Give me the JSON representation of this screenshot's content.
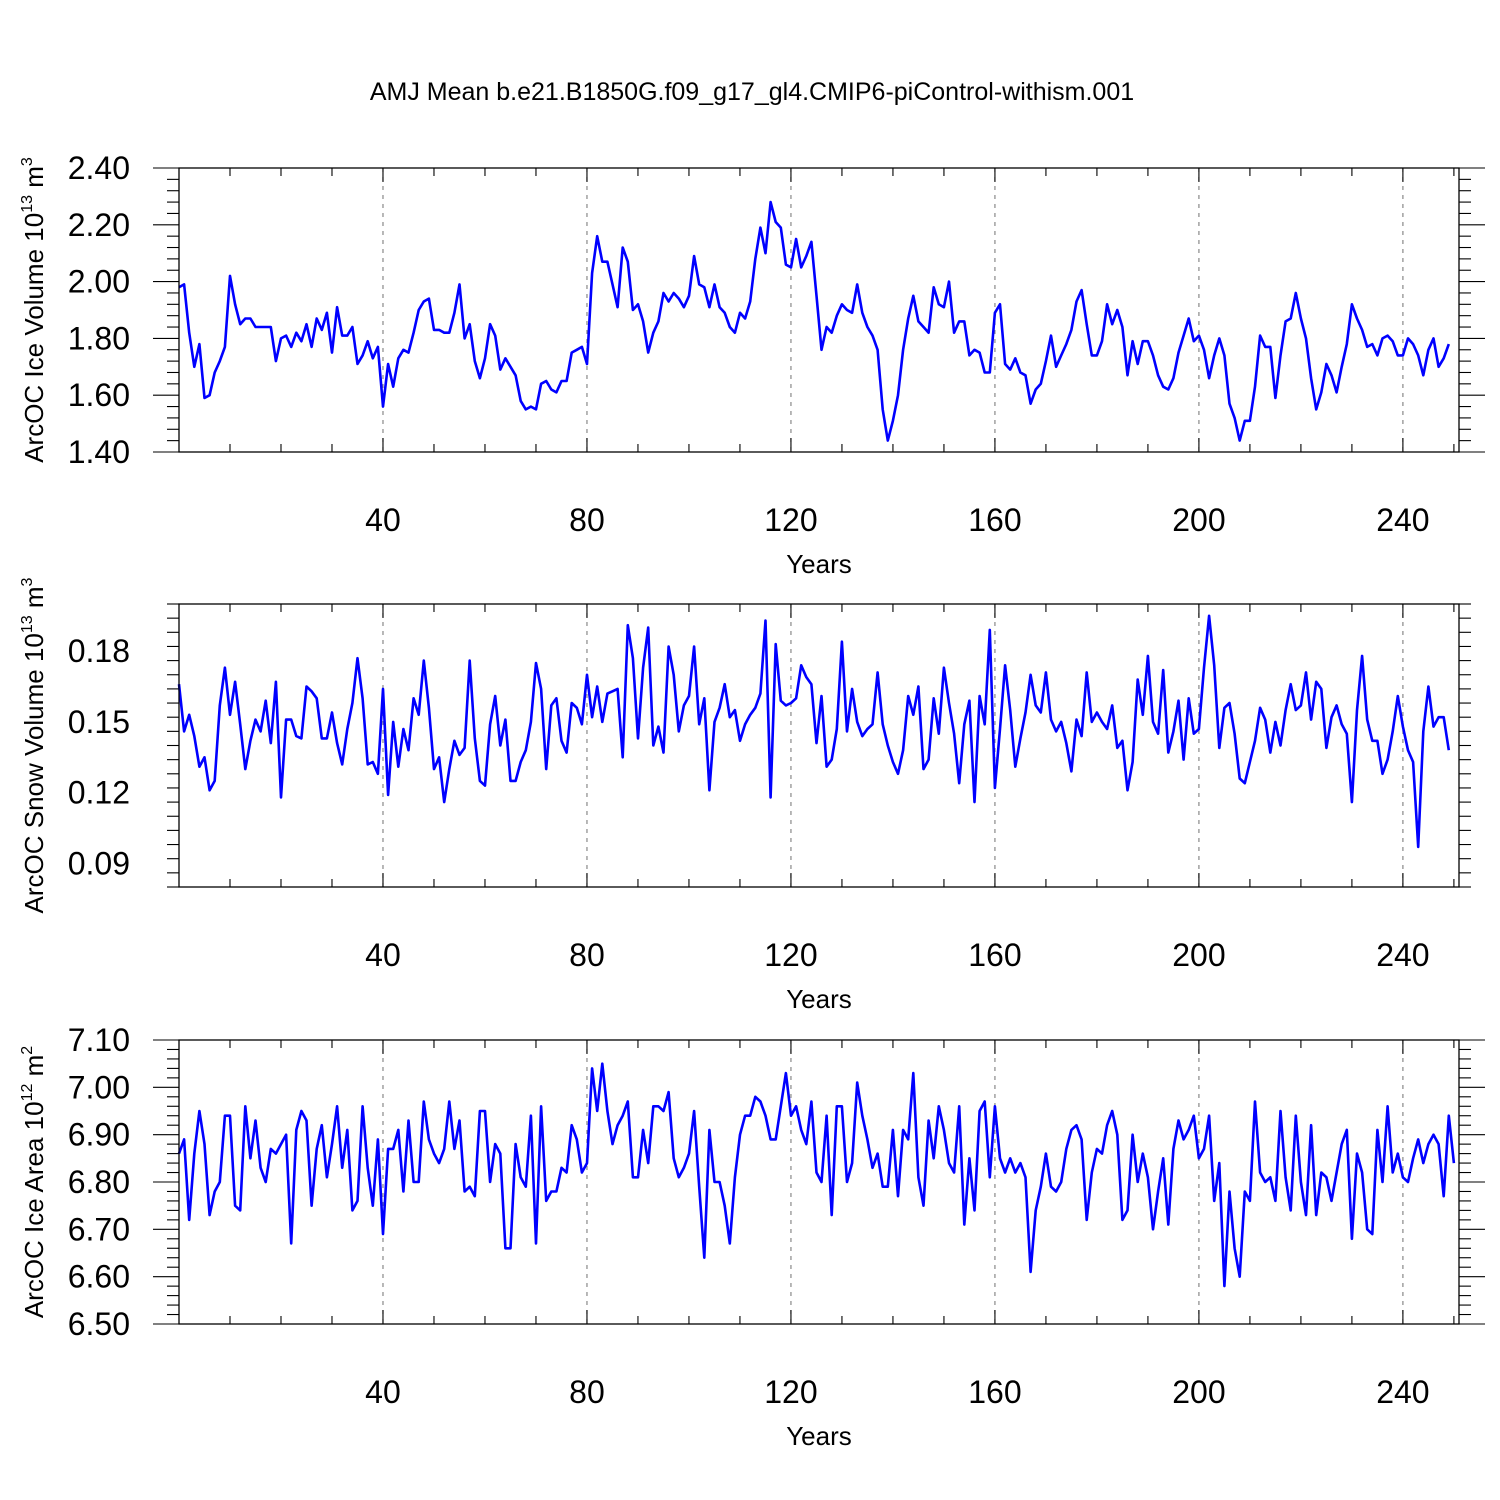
{
  "figure": {
    "title": "AMJ Mean b.e21.B1850G.f09_g17_gl4.CMIP6-piControl-withism.001"
  },
  "chart_data": [
    {
      "type": "line",
      "ylabel": "ArcOC Ice Volume 10",
      "ylabel_exp": "13",
      "ylabel_unit": " m",
      "ylabel_unit_exp": "3",
      "xlabel": "Years",
      "xlim": [
        0,
        251
      ],
      "ylim": [
        1.4,
        2.4
      ],
      "xticks": [
        40,
        80,
        120,
        160,
        200,
        240
      ],
      "xtick_labels": [
        "40",
        "80",
        "120",
        "160",
        "200",
        "240"
      ],
      "yticks": [
        1.4,
        1.6,
        1.8,
        2.0,
        2.2,
        2.4
      ],
      "ytick_labels": [
        "1.40",
        "1.60",
        "1.80",
        "2.00",
        "2.20",
        "2.40"
      ],
      "grid": "vertical dashed at x ticks",
      "series_color": "#0000ff",
      "x_start": 0,
      "x_step": 1,
      "values": [
        1.98,
        1.99,
        1.82,
        1.7,
        1.78,
        1.59,
        1.6,
        1.68,
        1.72,
        1.77,
        2.02,
        1.92,
        1.85,
        1.87,
        1.87,
        1.84,
        1.84,
        1.84,
        1.84,
        1.72,
        1.8,
        1.81,
        1.77,
        1.82,
        1.79,
        1.85,
        1.77,
        1.87,
        1.83,
        1.89,
        1.75,
        1.91,
        1.81,
        1.81,
        1.84,
        1.71,
        1.74,
        1.79,
        1.73,
        1.77,
        1.56,
        1.71,
        1.63,
        1.73,
        1.76,
        1.75,
        1.82,
        1.9,
        1.93,
        1.94,
        1.83,
        1.83,
        1.82,
        1.82,
        1.89,
        1.99,
        1.8,
        1.85,
        1.72,
        1.66,
        1.73,
        1.85,
        1.81,
        1.69,
        1.73,
        1.7,
        1.67,
        1.58,
        1.55,
        1.56,
        1.55,
        1.64,
        1.65,
        1.62,
        1.61,
        1.65,
        1.65,
        1.75,
        1.76,
        1.77,
        1.71,
        2.03,
        2.16,
        2.07,
        2.07,
        1.99,
        1.91,
        2.12,
        2.07,
        1.9,
        1.92,
        1.86,
        1.75,
        1.82,
        1.86,
        1.96,
        1.93,
        1.96,
        1.94,
        1.91,
        1.95,
        2.09,
        1.99,
        1.98,
        1.91,
        1.99,
        1.91,
        1.89,
        1.84,
        1.82,
        1.89,
        1.87,
        1.93,
        2.08,
        2.19,
        2.1,
        2.28,
        2.21,
        2.19,
        2.06,
        2.05,
        2.15,
        2.05,
        2.09,
        2.14,
        1.95,
        1.76,
        1.84,
        1.82,
        1.88,
        1.92,
        1.9,
        1.89,
        1.99,
        1.89,
        1.84,
        1.81,
        1.76,
        1.55,
        1.44,
        1.51,
        1.6,
        1.76,
        1.87,
        1.95,
        1.86,
        1.84,
        1.82,
        1.98,
        1.92,
        1.91,
        2.0,
        1.82,
        1.86,
        1.86,
        1.74,
        1.76,
        1.75,
        1.68,
        1.68,
        1.89,
        1.92,
        1.71,
        1.69,
        1.73,
        1.68,
        1.67,
        1.57,
        1.62,
        1.64,
        1.72,
        1.81,
        1.7,
        1.74,
        1.78,
        1.83,
        1.93,
        1.97,
        1.85,
        1.74,
        1.74,
        1.79,
        1.92,
        1.85,
        1.9,
        1.84,
        1.67,
        1.79,
        1.71,
        1.79,
        1.79,
        1.74,
        1.67,
        1.63,
        1.62,
        1.66,
        1.75,
        1.81,
        1.87,
        1.79,
        1.81,
        1.76,
        1.66,
        1.74,
        1.8,
        1.74,
        1.57,
        1.52,
        1.44,
        1.51,
        1.51,
        1.63,
        1.81,
        1.77,
        1.77,
        1.59,
        1.74,
        1.86,
        1.87,
        1.96,
        1.87,
        1.8,
        1.66,
        1.55,
        1.61,
        1.71,
        1.67,
        1.61,
        1.7,
        1.78,
        1.92,
        1.87,
        1.83,
        1.77,
        1.78,
        1.74,
        1.8,
        1.81,
        1.79,
        1.74,
        1.74,
        1.8,
        1.78,
        1.74,
        1.67,
        1.76,
        1.8,
        1.7,
        1.73,
        1.78
      ]
    },
    {
      "type": "line",
      "ylabel": "ArcOC Snow Volume 10",
      "ylabel_exp": "13",
      "ylabel_unit": " m",
      "ylabel_unit_exp": "3",
      "xlabel": "Years",
      "xlim": [
        0,
        251
      ],
      "ylim": [
        0.08,
        0.2
      ],
      "xticks": [
        40,
        80,
        120,
        160,
        200,
        240
      ],
      "xtick_labels": [
        "40",
        "80",
        "120",
        "160",
        "200",
        "240"
      ],
      "yticks": [
        0.09,
        0.12,
        0.15,
        0.18
      ],
      "ytick_labels": [
        "0.09",
        "0.12",
        "0.15",
        "0.18"
      ],
      "grid": "vertical dashed at x ticks",
      "series_color": "#0000ff",
      "x_start": 0,
      "x_step": 1,
      "values": [
        0.166,
        0.146,
        0.153,
        0.144,
        0.131,
        0.135,
        0.121,
        0.125,
        0.157,
        0.173,
        0.153,
        0.167,
        0.149,
        0.13,
        0.142,
        0.151,
        0.146,
        0.159,
        0.141,
        0.167,
        0.118,
        0.151,
        0.151,
        0.144,
        0.143,
        0.165,
        0.163,
        0.16,
        0.143,
        0.143,
        0.154,
        0.141,
        0.132,
        0.147,
        0.158,
        0.177,
        0.16,
        0.132,
        0.133,
        0.128,
        0.164,
        0.119,
        0.15,
        0.131,
        0.147,
        0.138,
        0.16,
        0.153,
        0.176,
        0.156,
        0.13,
        0.135,
        0.116,
        0.13,
        0.142,
        0.136,
        0.139,
        0.176,
        0.143,
        0.125,
        0.123,
        0.149,
        0.161,
        0.14,
        0.151,
        0.125,
        0.125,
        0.133,
        0.138,
        0.15,
        0.175,
        0.164,
        0.13,
        0.157,
        0.16,
        0.142,
        0.137,
        0.158,
        0.156,
        0.149,
        0.17,
        0.152,
        0.165,
        0.15,
        0.162,
        0.163,
        0.164,
        0.135,
        0.191,
        0.177,
        0.143,
        0.173,
        0.19,
        0.14,
        0.148,
        0.137,
        0.182,
        0.17,
        0.146,
        0.157,
        0.161,
        0.182,
        0.149,
        0.16,
        0.121,
        0.15,
        0.156,
        0.166,
        0.152,
        0.155,
        0.142,
        0.149,
        0.153,
        0.156,
        0.162,
        0.193,
        0.118,
        0.183,
        0.159,
        0.157,
        0.158,
        0.16,
        0.174,
        0.169,
        0.166,
        0.141,
        0.161,
        0.131,
        0.134,
        0.147,
        0.184,
        0.146,
        0.164,
        0.15,
        0.144,
        0.147,
        0.149,
        0.171,
        0.149,
        0.14,
        0.133,
        0.128,
        0.138,
        0.161,
        0.153,
        0.165,
        0.13,
        0.134,
        0.16,
        0.145,
        0.173,
        0.158,
        0.145,
        0.124,
        0.149,
        0.159,
        0.116,
        0.161,
        0.149,
        0.189,
        0.122,
        0.147,
        0.174,
        0.155,
        0.131,
        0.143,
        0.154,
        0.17,
        0.157,
        0.154,
        0.171,
        0.151,
        0.146,
        0.15,
        0.141,
        0.129,
        0.151,
        0.144,
        0.171,
        0.15,
        0.154,
        0.15,
        0.147,
        0.157,
        0.139,
        0.142,
        0.121,
        0.133,
        0.168,
        0.153,
        0.178,
        0.15,
        0.145,
        0.172,
        0.137,
        0.146,
        0.159,
        0.134,
        0.16,
        0.145,
        0.147,
        0.173,
        0.195,
        0.174,
        0.139,
        0.156,
        0.158,
        0.145,
        0.126,
        0.124,
        0.133,
        0.142,
        0.156,
        0.151,
        0.137,
        0.15,
        0.14,
        0.155,
        0.166,
        0.155,
        0.157,
        0.171,
        0.151,
        0.167,
        0.164,
        0.139,
        0.152,
        0.157,
        0.149,
        0.145,
        0.116,
        0.155,
        0.178,
        0.151,
        0.142,
        0.142,
        0.128,
        0.134,
        0.146,
        0.161,
        0.148,
        0.138,
        0.133,
        0.097,
        0.146,
        0.165,
        0.148,
        0.152,
        0.152,
        0.138
      ]
    },
    {
      "type": "line",
      "ylabel": "ArcOC Ice Area 10",
      "ylabel_exp": "12",
      "ylabel_unit": " m",
      "ylabel_unit_exp": "2",
      "xlabel": "Years",
      "xlim": [
        0,
        251
      ],
      "ylim": [
        6.5,
        7.1
      ],
      "xticks": [
        40,
        80,
        120,
        160,
        200,
        240
      ],
      "xtick_labels": [
        "40",
        "80",
        "120",
        "160",
        "200",
        "240"
      ],
      "yticks": [
        6.5,
        6.6,
        6.7,
        6.8,
        6.9,
        7.0,
        7.1
      ],
      "ytick_labels": [
        "6.50",
        "6.60",
        "6.70",
        "6.80",
        "6.90",
        "7.00",
        "7.10"
      ],
      "grid": "vertical dashed at x ticks",
      "series_color": "#0000ff",
      "x_start": 0,
      "x_step": 1,
      "values": [
        6.86,
        6.89,
        6.72,
        6.86,
        6.95,
        6.88,
        6.73,
        6.78,
        6.8,
        6.94,
        6.94,
        6.75,
        6.74,
        6.96,
        6.85,
        6.93,
        6.83,
        6.8,
        6.87,
        6.86,
        6.88,
        6.9,
        6.67,
        6.91,
        6.95,
        6.93,
        6.75,
        6.87,
        6.92,
        6.81,
        6.88,
        6.96,
        6.83,
        6.91,
        6.74,
        6.76,
        6.96,
        6.83,
        6.75,
        6.89,
        6.69,
        6.87,
        6.87,
        6.91,
        6.78,
        6.93,
        6.8,
        6.8,
        6.97,
        6.89,
        6.86,
        6.84,
        6.87,
        6.97,
        6.87,
        6.93,
        6.78,
        6.79,
        6.77,
        6.95,
        6.95,
        6.8,
        6.88,
        6.86,
        6.66,
        6.66,
        6.88,
        6.81,
        6.79,
        6.94,
        6.67,
        6.96,
        6.76,
        6.78,
        6.78,
        6.83,
        6.82,
        6.92,
        6.89,
        6.82,
        6.84,
        7.04,
        6.95,
        7.05,
        6.95,
        6.88,
        6.92,
        6.94,
        6.97,
        6.81,
        6.81,
        6.91,
        6.84,
        6.96,
        6.96,
        6.95,
        6.99,
        6.85,
        6.81,
        6.83,
        6.86,
        6.95,
        6.79,
        6.64,
        6.91,
        6.8,
        6.8,
        6.75,
        6.67,
        6.81,
        6.9,
        6.94,
        6.94,
        6.98,
        6.97,
        6.94,
        6.89,
        6.89,
        6.96,
        7.03,
        6.94,
        6.96,
        6.91,
        6.88,
        6.97,
        6.82,
        6.8,
        6.94,
        6.73,
        6.96,
        6.96,
        6.8,
        6.84,
        7.01,
        6.94,
        6.89,
        6.83,
        6.86,
        6.79,
        6.79,
        6.91,
        6.77,
        6.91,
        6.89,
        7.03,
        6.81,
        6.75,
        6.93,
        6.85,
        6.96,
        6.91,
        6.84,
        6.82,
        6.96,
        6.71,
        6.85,
        6.74,
        6.95,
        6.97,
        6.81,
        6.96,
        6.85,
        6.82,
        6.85,
        6.82,
        6.84,
        6.81,
        6.61,
        6.74,
        6.79,
        6.86,
        6.79,
        6.78,
        6.8,
        6.87,
        6.91,
        6.92,
        6.89,
        6.72,
        6.82,
        6.87,
        6.86,
        6.92,
        6.95,
        6.9,
        6.72,
        6.74,
        6.9,
        6.8,
        6.86,
        6.81,
        6.7,
        6.78,
        6.85,
        6.71,
        6.87,
        6.93,
        6.89,
        6.91,
        6.94,
        6.85,
        6.87,
        6.94,
        6.76,
        6.84,
        6.58,
        6.78,
        6.66,
        6.6,
        6.78,
        6.76,
        6.97,
        6.82,
        6.8,
        6.81,
        6.76,
        6.95,
        6.81,
        6.74,
        6.94,
        6.8,
        6.73,
        6.92,
        6.73,
        6.82,
        6.81,
        6.76,
        6.82,
        6.88,
        6.91,
        6.68,
        6.86,
        6.82,
        6.7,
        6.69,
        6.91,
        6.8,
        6.96,
        6.82,
        6.86,
        6.81,
        6.8,
        6.85,
        6.89,
        6.84,
        6.88,
        6.9,
        6.88,
        6.77,
        6.94,
        6.84
      ]
    }
  ]
}
